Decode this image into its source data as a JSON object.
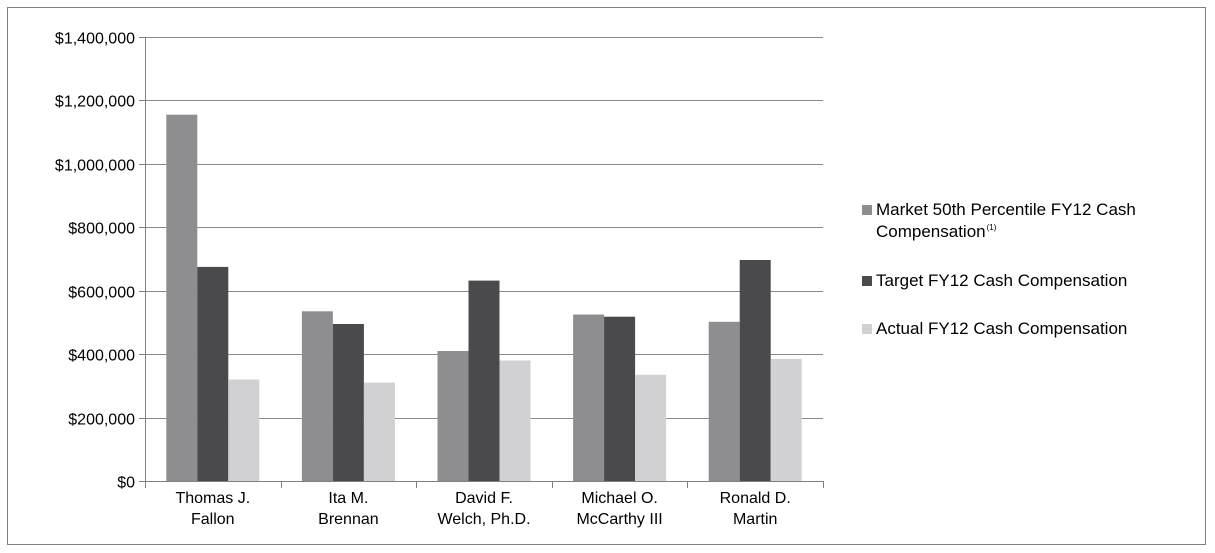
{
  "chart_data": {
    "type": "bar",
    "title": "",
    "xlabel": "",
    "ylabel": "",
    "ylim": [
      0,
      1400000
    ],
    "ytick_values": [
      0,
      200000,
      400000,
      600000,
      800000,
      1000000,
      1200000,
      1400000
    ],
    "ytick_labels": [
      "$0",
      "$200,000",
      "$400,000",
      "$600,000",
      "$800,000",
      "$1,000,000",
      "$1,200,000",
      "$1,400,000"
    ],
    "grid": true,
    "legend_position": "right",
    "categories": [
      [
        "Thomas J.",
        "Fallon"
      ],
      [
        "Ita M.",
        "Brennan"
      ],
      [
        "David F.",
        "Welch, Ph.D."
      ],
      [
        "Michael O.",
        "McCarthy III"
      ],
      [
        "Ronald D.",
        "Martin"
      ]
    ],
    "series": [
      {
        "name": "Market 50th Percentile FY12 Cash Compensation",
        "name_lines": [
          "Market 50th Percentile FY12 Cash",
          "Compensation"
        ],
        "footnote": "(1)",
        "color": "#8e8e91",
        "values": [
          1155000,
          535000,
          410000,
          525000,
          502000
        ]
      },
      {
        "name": "Target FY12 Cash Compensation",
        "name_lines": [
          "Target FY12 Cash Compensation"
        ],
        "color": "#4a4a4d",
        "values": [
          675000,
          495000,
          632000,
          518000,
          697000
        ]
      },
      {
        "name": "Actual FY12 Cash Compensation",
        "name_lines": [
          "Actual FY12 Cash Compensation"
        ],
        "color": "#d1d1d3",
        "values": [
          320000,
          310000,
          380000,
          335000,
          385000
        ]
      }
    ],
    "axis_color": "#808080",
    "grid_color": "#8a8a8a"
  }
}
